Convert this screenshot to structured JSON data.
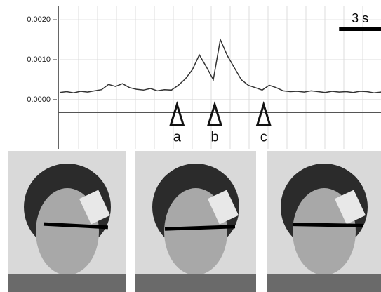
{
  "chart_data": {
    "type": "line",
    "x": [
      0,
      0.5,
      1,
      1.5,
      2,
      2.5,
      3,
      3.5,
      4,
      4.5,
      5,
      5.5,
      6,
      6.5,
      7,
      7.5,
      8,
      8.5,
      9,
      9.5,
      10,
      10.5,
      11,
      11.5,
      12,
      12.5,
      13,
      13.5,
      14,
      14.5,
      15,
      15.5,
      16,
      16.5,
      17,
      17.5,
      18,
      18.5,
      19,
      19.5,
      20,
      20.5,
      21,
      21.5,
      22,
      22.5,
      23
    ],
    "values": [
      0.00018,
      0.0002,
      0.00017,
      0.00021,
      0.00019,
      0.00022,
      0.00025,
      0.00038,
      0.00033,
      0.0004,
      0.0003,
      0.00026,
      0.00024,
      0.00028,
      0.00022,
      0.00025,
      0.00024,
      0.00036,
      0.00052,
      0.00075,
      0.00112,
      0.00082,
      0.0005,
      0.0015,
      0.0011,
      0.0008,
      0.0005,
      0.00036,
      0.0003,
      0.00024,
      0.00036,
      0.0003,
      0.00022,
      0.0002,
      0.00021,
      0.00019,
      0.00022,
      0.0002,
      0.00018,
      0.00021,
      0.00019,
      0.0002,
      0.00018,
      0.00021,
      0.0002,
      0.00017,
      0.00019
    ],
    "color": "#333333",
    "xlim": [
      0,
      23
    ],
    "ylim": [
      -0.0003,
      0.0023
    ],
    "yticks": [
      {
        "value": 0,
        "label": "0.0000"
      },
      {
        "value": 0.001,
        "label": "0.0010"
      },
      {
        "value": 0.002,
        "label": "0.0020"
      }
    ],
    "grid": true,
    "scale_bar": {
      "value": 3,
      "label": "3 s"
    },
    "annotations": [
      {
        "label": "a",
        "x": 8.4
      },
      {
        "label": "b",
        "x": 11.1
      },
      {
        "label": "c",
        "x": 14.6
      }
    ]
  }
}
